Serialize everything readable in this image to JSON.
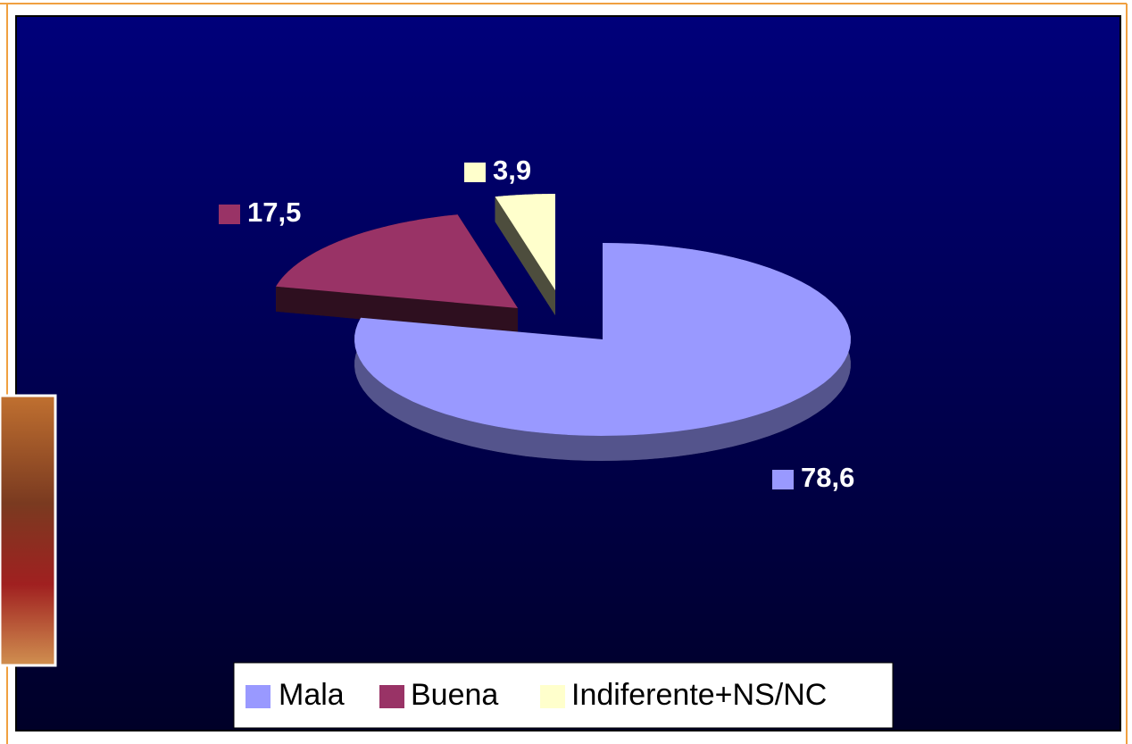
{
  "chart_data": {
    "type": "pie3d",
    "categories": [
      "Mala",
      "Buena",
      "Indiferente+NS/NC"
    ],
    "values": [
      78.6,
      17.5,
      3.9
    ],
    "value_labels": [
      "78,6",
      "17,5",
      "3,9"
    ],
    "colors": [
      "#9999ff",
      "#993366",
      "#ffffcc"
    ],
    "legend": "bottom"
  }
}
